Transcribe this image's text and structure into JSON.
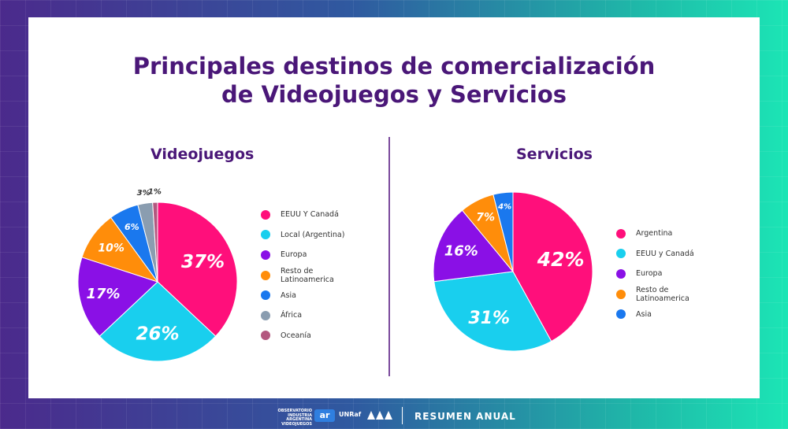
{
  "title_line1": "Principales destinos de comercialización",
  "title_line2": "de Videojuegos  y Servicios",
  "footer": {
    "brand": "OBSERVATORIO INDUSTRIA ARGENTINA VIDEOJUEGOS",
    "ar_logo": "ar",
    "unraf_logo": "UNRaf",
    "title": "RESUMEN ANUAL"
  },
  "chart_data": [
    {
      "type": "pie",
      "title": "Videojuegos",
      "start_angle_deg": 0,
      "slices": [
        {
          "label": "EEUU Y Canadá",
          "value": 37,
          "display": "37%",
          "color": "#ff0f7b",
          "label_color": "#ffffff"
        },
        {
          "label": "Local (Argentina)",
          "value": 26,
          "display": "26%",
          "color": "#19cfee",
          "label_color": "#ffffff"
        },
        {
          "label": "Europa",
          "value": 17,
          "display": "17%",
          "color": "#8a10e6",
          "label_color": "#ffffff"
        },
        {
          "label": "Resto de Latinoamerica",
          "value": 10,
          "display": "10%",
          "color": "#ff8d0a",
          "label_color": "#ffffff"
        },
        {
          "label": "Asia",
          "value": 6,
          "display": "6%",
          "color": "#1a78ee",
          "label_color": "#ffffff"
        },
        {
          "label": "África",
          "value": 3,
          "display": "3%",
          "color": "#8a9db0",
          "label_color": "#333333"
        },
        {
          "label": "Oceanía",
          "value": 1,
          "display": "1%",
          "color": "#b3577f",
          "label_color": "#333333"
        }
      ],
      "legend_position": "right"
    },
    {
      "type": "pie",
      "title": "Servicios",
      "start_angle_deg": 0,
      "slices": [
        {
          "label": "Argentina",
          "value": 42,
          "display": "42%",
          "color": "#ff0f7b",
          "label_color": "#ffffff"
        },
        {
          "label": "EEUU y Canadá",
          "value": 31,
          "display": "31%",
          "color": "#19cfee",
          "label_color": "#ffffff"
        },
        {
          "label": "Europa",
          "value": 16,
          "display": "16%",
          "color": "#8a10e6",
          "label_color": "#ffffff"
        },
        {
          "label": "Resto de Latinoamerica",
          "value": 7,
          "display": "7%",
          "color": "#ff8d0a",
          "label_color": "#ffffff"
        },
        {
          "label": "Asia",
          "value": 4,
          "display": "4%",
          "color": "#1a78ee",
          "label_color": "#ffffff"
        }
      ],
      "legend_position": "right"
    }
  ]
}
